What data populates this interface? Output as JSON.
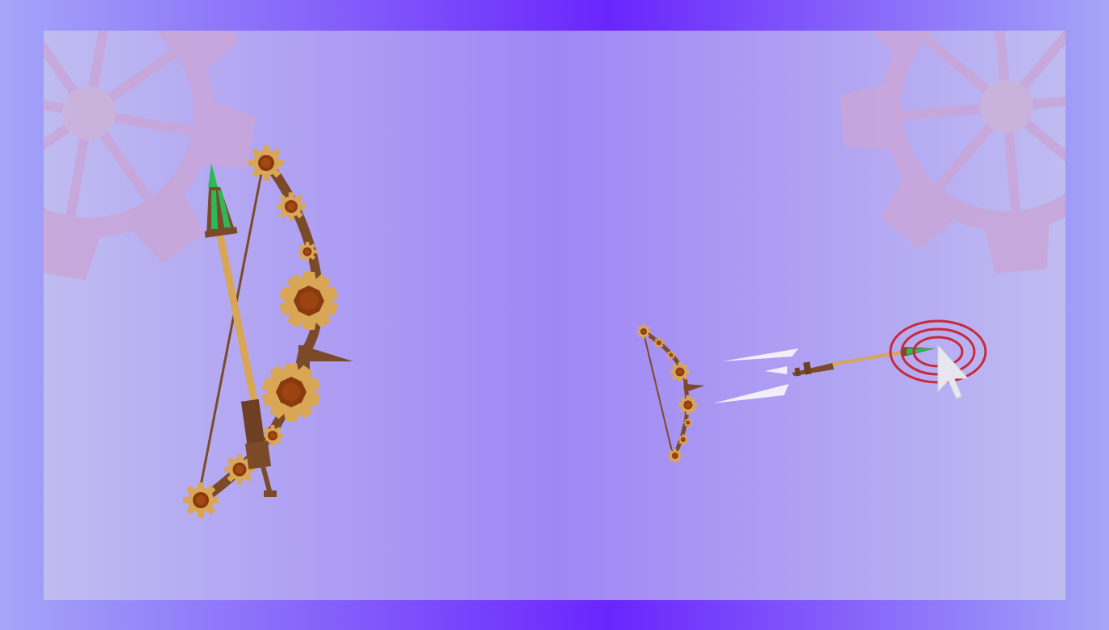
{
  "colors": {
    "frame_edge": "#a4a6f8",
    "frame_center": "#6a25fc",
    "panel_edge": "#bfbcf1",
    "panel_center": "#a086f4",
    "gear_watermark": "#c9a6d9",
    "gold": "#d9a655",
    "gem": "#8b3a0f",
    "wood": "#7b4a28",
    "fletching": "#2fb856",
    "target_ring": "#c62a3a",
    "speed_lines": "#f1effa",
    "cursor": "#e8e6ef"
  },
  "icons": {
    "large_bow": "steampunk-bow-icon",
    "small_bow": "steampunk-bow-icon",
    "target": "bullseye-target-icon",
    "cursor": "mouse-pointer-icon",
    "gears": "gear-icon"
  }
}
